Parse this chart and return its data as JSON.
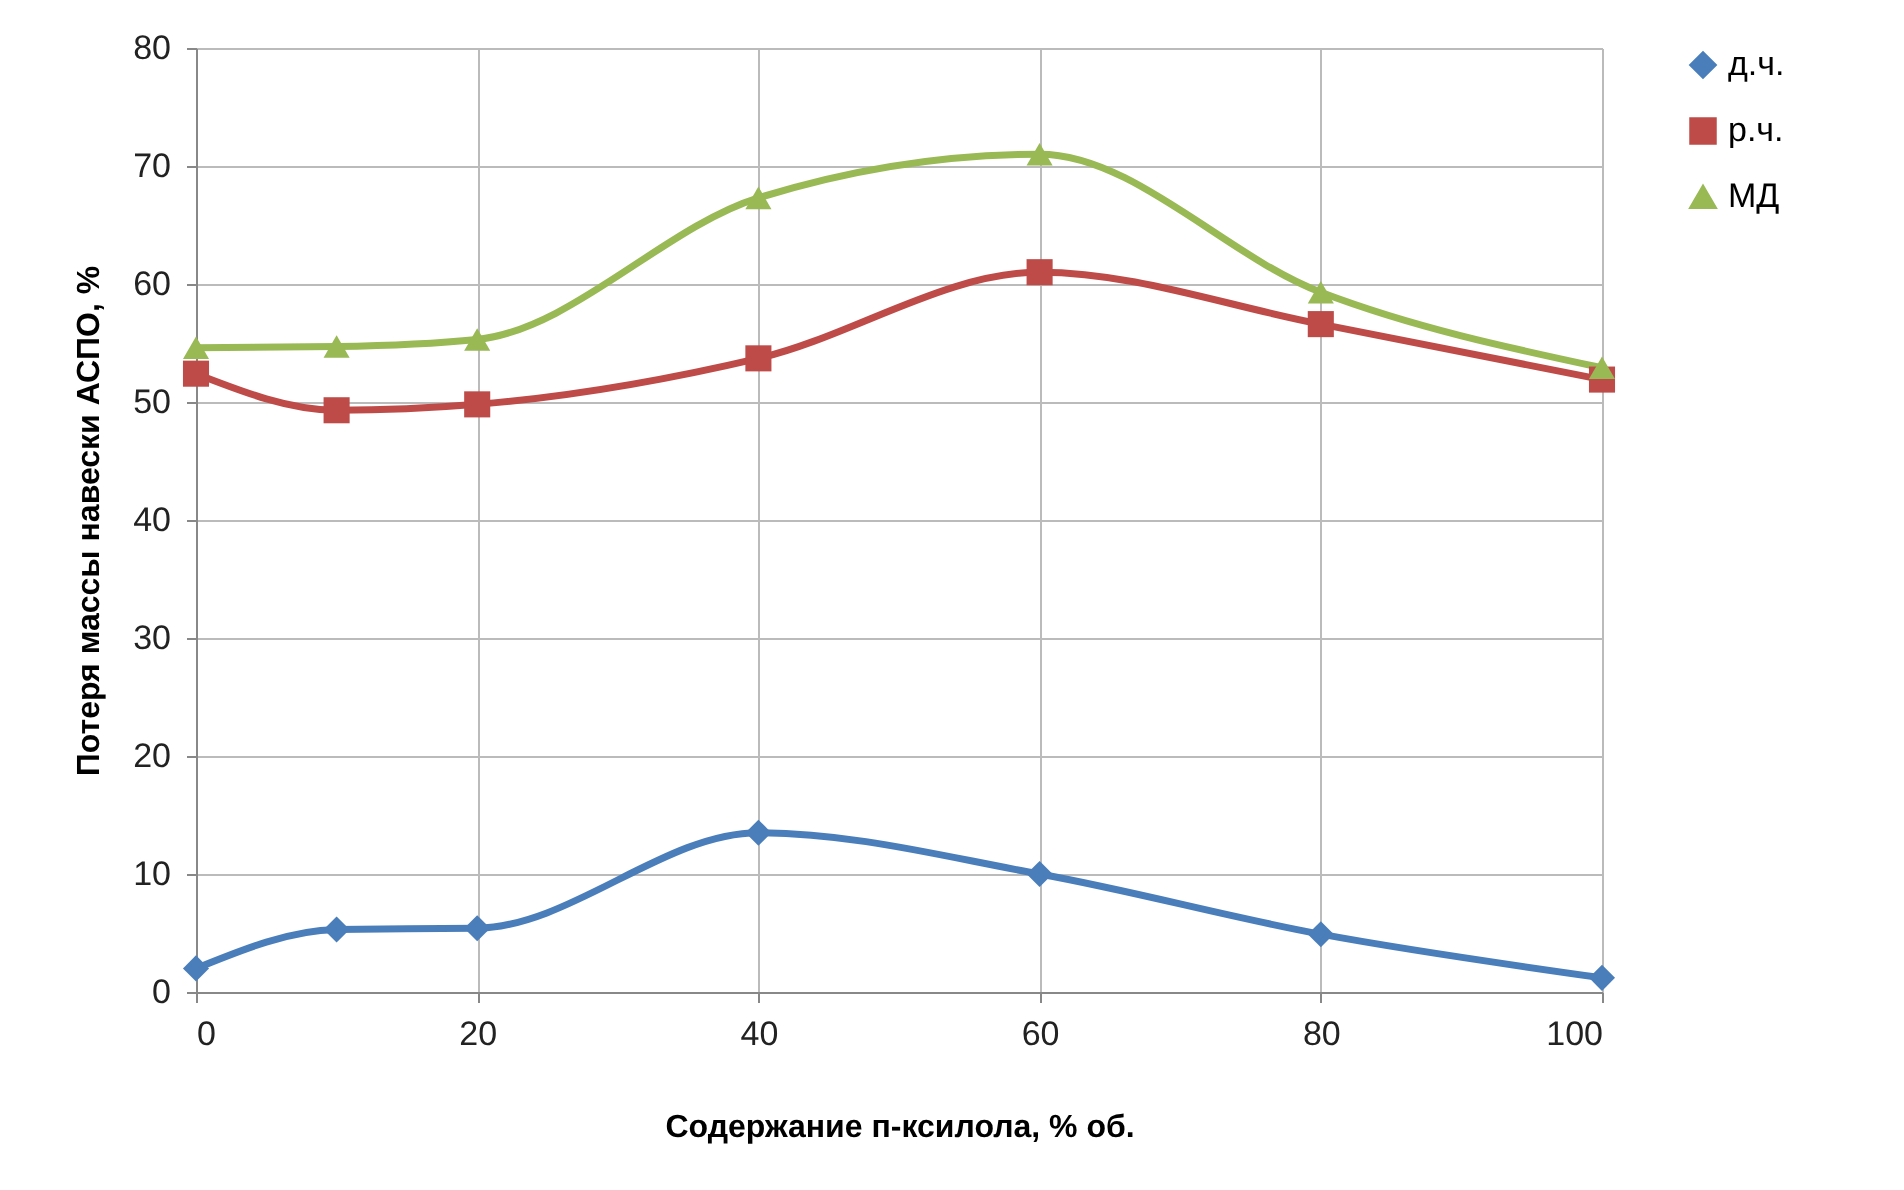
{
  "chart_data": {
    "type": "line",
    "xlabel": "Содержание п-ксилола, % об.",
    "ylabel": "Потеря массы навески АСПО, %",
    "x": [
      0,
      10,
      20,
      40,
      60,
      80,
      100
    ],
    "xlim": [
      0,
      100
    ],
    "xticks": [
      0,
      20,
      40,
      60,
      80,
      100
    ],
    "ylim": [
      0,
      80
    ],
    "yticks": [
      0,
      10,
      20,
      30,
      40,
      50,
      60,
      70,
      80
    ],
    "grid": true,
    "legend": "right",
    "line_style": "solid",
    "series": [
      {
        "name": "д.ч.",
        "color": "#4a7ebb",
        "marker": "diamond",
        "values": [
          2.0,
          5.3,
          5.4,
          13.5,
          10.0,
          4.9,
          1.2
        ]
      },
      {
        "name": "р.ч.",
        "color": "#be4b48",
        "marker": "square",
        "values": [
          52.4,
          49.3,
          49.8,
          53.7,
          61.0,
          56.6,
          51.9
        ]
      },
      {
        "name": "МД",
        "color": "#98b954",
        "marker": "triangle",
        "values": [
          54.6,
          54.7,
          55.3,
          67.3,
          71.0,
          59.3,
          52.9
        ]
      }
    ]
  }
}
